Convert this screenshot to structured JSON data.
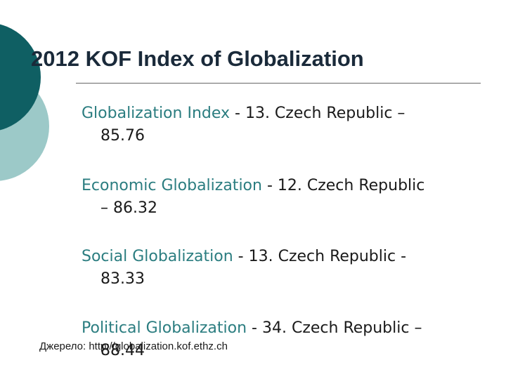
{
  "slide": {
    "title": "2012 KOF Index of Globalization",
    "bullets": [
      {
        "label": "Globalization Index",
        "line1_rest": " - 13. Czech Republic –",
        "line2": "85.76"
      },
      {
        "label": "Economic Globalization",
        "line1_rest": " - 12. Czech Republic",
        "line2": "– 86.32"
      },
      {
        "label": "Social Globalization",
        "line1_rest": " - 13. Czech Republic  -",
        "line2": "83.33"
      },
      {
        "label": "Political Globalization",
        "line1_rest": " - 34. Czech Republic –",
        "line2": "88.44"
      }
    ],
    "source": "Джерело: http://globalization.kof.ethz.ch"
  },
  "colors": {
    "accent_dark": "#0f5f63",
    "accent_light": "#9cc9c8",
    "highlight_text": "#2b7d80"
  }
}
